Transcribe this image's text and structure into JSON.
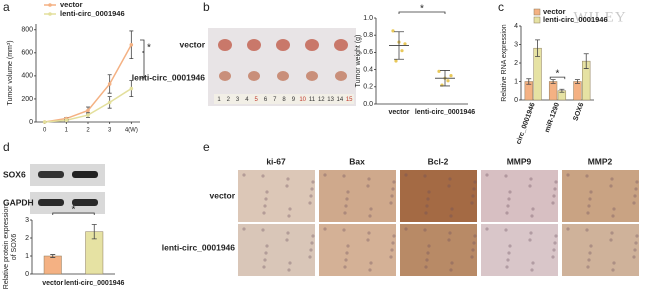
{
  "panels": [
    "a",
    "b",
    "c",
    "d",
    "e"
  ],
  "tumor_photo": {
    "rows": [
      "vector",
      "lenti-circ_0001946"
    ],
    "ruler": [
      "1",
      "2",
      "3",
      "4",
      "5",
      "6",
      "7",
      "8",
      "9",
      "10",
      "11",
      "12",
      "13",
      "14",
      "15"
    ]
  },
  "blot": {
    "rows": [
      "SOX6",
      "GAPDH"
    ]
  },
  "ihc": {
    "columns": [
      "ki-67",
      "Bax",
      "Bcl-2",
      "MMP9",
      "MMP2"
    ],
    "rows": [
      "vector",
      "lenti-circ_0001946"
    ]
  },
  "watermark": "WILEY",
  "chart_data": [
    {
      "type": "line",
      "ylabel": "Tumor volume (mm³)",
      "x": [
        0,
        1,
        2,
        3,
        4
      ],
      "xlim": [
        -0.4,
        4.4
      ],
      "xticks": [
        0,
        1,
        2,
        3,
        {
          "value": 4,
          "label": "4(W)"
        }
      ],
      "ylim": [
        0,
        850
      ],
      "yticks": [
        0,
        200,
        400,
        600,
        800
      ],
      "series": [
        {
          "name": "vector",
          "color": "#f4b183",
          "values": [
            0,
            30,
            100,
            330,
            670
          ],
          "errors": [
            0,
            10,
            30,
            80,
            120
          ]
        },
        {
          "name": "lenti-circ_0001946",
          "color": "#e3df9c",
          "values": [
            0,
            15,
            60,
            170,
            290
          ],
          "errors": [
            0,
            5,
            20,
            50,
            70
          ]
        }
      ],
      "annotations": [
        "*"
      ]
    },
    {
      "type": "dotplot",
      "ylabel": "Tumor weight (g)",
      "categories": [
        "vector",
        "lenti-circ_0001946"
      ],
      "ylim": [
        0,
        1.0
      ],
      "yticks": [
        {
          "value": 0,
          "label": "0.0"
        },
        {
          "value": 0.2,
          "label": "0.2"
        },
        {
          "value": 0.4,
          "label": "0.4"
        },
        {
          "value": 0.6,
          "label": "0.6"
        },
        {
          "value": 0.8,
          "label": "0.8"
        },
        {
          "value": 1.0,
          "label": "1.0"
        }
      ],
      "color": "#e8c85a",
      "values": [
        0.68,
        0.3
      ],
      "errors": [
        0.16,
        0.09
      ],
      "points": [
        [
          0.85,
          0.5,
          0.72,
          0.62,
          0.7
        ],
        [
          0.38,
          0.22,
          0.3,
          0.27,
          0.33
        ]
      ],
      "annotations": [
        "*"
      ]
    },
    {
      "type": "bar",
      "ylabel": "Relative RNA expression",
      "categories": [
        "circ_0001946",
        "miR-1290",
        "SOX6"
      ],
      "ylim": [
        0,
        4
      ],
      "yticks": [
        0,
        1,
        2,
        3,
        4
      ],
      "series": [
        {
          "name": "vector",
          "color": "#f4b183",
          "values": [
            1.0,
            1.0,
            1.0
          ],
          "errors": [
            0.15,
            0.1,
            0.1
          ]
        },
        {
          "name": "lenti-circ_0001946",
          "color": "#e6e2a3",
          "values": [
            2.8,
            0.5,
            2.1
          ],
          "errors": [
            0.45,
            0.08,
            0.4
          ]
        }
      ],
      "annotations": [
        "*"
      ]
    },
    {
      "type": "bar",
      "ylabel": [
        "Relative protein expression",
        "of SOX6"
      ],
      "categories": [
        "vector",
        "lenti-circ_0001946"
      ],
      "ylim": [
        0,
        3
      ],
      "yticks": [
        0,
        1,
        2,
        3
      ],
      "series": [
        {
          "colors": [
            "#f4b183",
            "#e6e2a3"
          ],
          "values": [
            1.0,
            2.35
          ],
          "errors": [
            0.08,
            0.4
          ]
        }
      ],
      "annotations": [
        "*"
      ]
    }
  ]
}
